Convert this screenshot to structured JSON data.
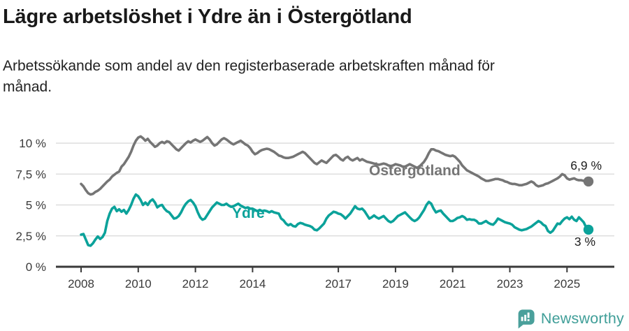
{
  "title": "Lägre arbetslöshet i Ydre än i Östergötland",
  "subtitle": "Arbetssökande som andel av den registerbaserade arbetskraften månad för månad.",
  "subtitle_lines": [
    "Arbetssökande som andel av den registerbaserade arbetskraften månad för",
    "månad."
  ],
  "colors": {
    "ostergotland_line": "#757575",
    "ydre_line": "#0ba29a",
    "grid": "#d8d8d8",
    "axis": "#3a3a3a",
    "text": "#191919",
    "brand_teal": "#3f9e98"
  },
  "footer": {
    "brand": "Newsworthy",
    "logo_icon": "speech-bubble-bar-chart-icon"
  },
  "chart_data": {
    "type": "line",
    "title": "Lägre arbetslöshet i Ydre än i Östergötland",
    "subtitle": "Arbetssökande som andel av den registerbaserade arbetskraften månad för månad.",
    "x_unit": "month",
    "x_start": "2008-01",
    "x_end": "2025-10",
    "ylim": [
      0,
      11.2
    ],
    "grid": true,
    "legend": "inline-labels",
    "y_ticks": [
      "0 %",
      "2,5 %",
      "5 %",
      "7,5 %",
      "10 %"
    ],
    "y_tick_values": [
      0,
      2.5,
      5,
      7.5,
      10
    ],
    "x_ticks": [
      "2008",
      "2010",
      "2012",
      "2014",
      "2017",
      "2019",
      "2021",
      "2023",
      "2025"
    ],
    "series": [
      {
        "name": "Östergötland",
        "color": "#757575",
        "end_label": "6,9 %",
        "end_value": 6.9,
        "values": [
          6.7,
          6.5,
          6.2,
          5.95,
          5.85,
          5.9,
          6.05,
          6.15,
          6.3,
          6.5,
          6.7,
          6.9,
          7.05,
          7.3,
          7.45,
          7.6,
          7.7,
          8.1,
          8.3,
          8.6,
          8.9,
          9.3,
          9.8,
          10.2,
          10.45,
          10.55,
          10.4,
          10.2,
          10.35,
          10.1,
          9.9,
          9.7,
          9.8,
          10.0,
          10.1,
          10.0,
          10.15,
          10.1,
          9.9,
          9.7,
          9.5,
          9.4,
          9.6,
          9.8,
          10.0,
          10.15,
          10.05,
          10.2,
          10.3,
          10.2,
          10.1,
          10.2,
          10.35,
          10.5,
          10.3,
          10.0,
          9.8,
          9.9,
          10.1,
          10.3,
          10.4,
          10.3,
          10.15,
          10.0,
          9.9,
          10.0,
          10.1,
          10.2,
          10.05,
          9.9,
          9.8,
          9.6,
          9.3,
          9.1,
          9.2,
          9.35,
          9.45,
          9.5,
          9.55,
          9.5,
          9.4,
          9.3,
          9.15,
          9.0,
          8.95,
          8.85,
          8.8,
          8.8,
          8.85,
          8.9,
          9.0,
          9.1,
          9.2,
          9.3,
          9.2,
          9.0,
          8.8,
          8.6,
          8.4,
          8.3,
          8.45,
          8.6,
          8.5,
          8.4,
          8.6,
          8.8,
          9.0,
          9.05,
          8.9,
          8.7,
          8.6,
          8.8,
          8.9,
          8.7,
          8.6,
          8.7,
          8.8,
          8.6,
          8.7,
          8.6,
          8.5,
          8.45,
          8.4,
          8.35,
          8.3,
          8.25,
          8.3,
          8.35,
          8.3,
          8.2,
          8.15,
          8.2,
          8.3,
          8.25,
          8.2,
          8.1,
          8.1,
          8.2,
          8.3,
          8.2,
          8.1,
          8.0,
          8.1,
          8.3,
          8.5,
          8.8,
          9.2,
          9.5,
          9.5,
          9.4,
          9.35,
          9.25,
          9.15,
          9.05,
          9.0,
          8.95,
          9.0,
          8.9,
          8.7,
          8.5,
          8.2,
          8.0,
          7.8,
          7.7,
          7.6,
          7.5,
          7.4,
          7.3,
          7.15,
          7.05,
          6.95,
          6.95,
          7.0,
          7.05,
          7.1,
          7.1,
          7.05,
          7.0,
          6.9,
          6.85,
          6.75,
          6.7,
          6.7,
          6.65,
          6.6,
          6.6,
          6.65,
          6.7,
          6.8,
          6.9,
          6.8,
          6.6,
          6.5,
          6.55,
          6.6,
          6.7,
          6.75,
          6.85,
          6.95,
          7.05,
          7.15,
          7.3,
          7.5,
          7.4,
          7.15,
          7.05,
          7.1,
          7.15,
          7.05,
          7.0,
          7.0,
          6.95,
          6.95,
          6.9
        ]
      },
      {
        "name": "Ydre",
        "color": "#0ba29a",
        "end_label": "3 %",
        "end_value": 3.0,
        "values": [
          2.6,
          2.65,
          2.2,
          1.75,
          1.7,
          1.9,
          2.2,
          2.45,
          2.25,
          2.4,
          2.75,
          3.7,
          4.3,
          4.7,
          4.85,
          4.5,
          4.65,
          4.45,
          4.6,
          4.3,
          4.6,
          5.0,
          5.5,
          5.85,
          5.7,
          5.4,
          5.0,
          5.2,
          5.0,
          5.3,
          5.45,
          5.2,
          4.8,
          4.95,
          5.0,
          4.7,
          4.5,
          4.4,
          4.15,
          3.9,
          3.95,
          4.1,
          4.4,
          4.8,
          5.1,
          5.3,
          5.4,
          5.2,
          4.9,
          4.4,
          4.0,
          3.8,
          3.9,
          4.2,
          4.5,
          4.8,
          5.0,
          5.2,
          5.1,
          5.0,
          5.0,
          5.1,
          4.95,
          4.85,
          4.9,
          5.0,
          5.1,
          4.95,
          4.85,
          4.75,
          4.8,
          4.7,
          4.7,
          4.6,
          4.5,
          4.6,
          4.5,
          4.55,
          4.5,
          4.4,
          4.5,
          4.4,
          4.35,
          4.3,
          3.9,
          3.75,
          3.5,
          3.35,
          3.45,
          3.3,
          3.25,
          3.45,
          3.55,
          3.5,
          3.4,
          3.35,
          3.3,
          3.2,
          3.0,
          2.95,
          3.1,
          3.3,
          3.5,
          3.9,
          4.15,
          4.3,
          4.45,
          4.4,
          4.3,
          4.25,
          4.1,
          3.9,
          4.1,
          4.3,
          4.6,
          4.9,
          4.7,
          4.65,
          4.7,
          4.5,
          4.2,
          3.9,
          4.0,
          4.15,
          4.0,
          3.9,
          4.0,
          4.1,
          3.9,
          3.7,
          3.6,
          3.7,
          3.9,
          4.1,
          4.2,
          4.3,
          4.4,
          4.2,
          4.0,
          3.8,
          3.7,
          3.8,
          4.0,
          4.3,
          4.6,
          5.0,
          5.25,
          5.1,
          4.7,
          4.4,
          4.5,
          4.55,
          4.3,
          4.1,
          3.9,
          3.7,
          3.7,
          3.8,
          3.95,
          4.0,
          4.1,
          4.0,
          3.8,
          3.85,
          3.8,
          3.8,
          3.7,
          3.5,
          3.5,
          3.6,
          3.7,
          3.55,
          3.45,
          3.4,
          3.6,
          3.9,
          3.8,
          3.7,
          3.6,
          3.55,
          3.5,
          3.4,
          3.2,
          3.1,
          3.0,
          2.95,
          3.0,
          3.05,
          3.15,
          3.25,
          3.4,
          3.55,
          3.7,
          3.6,
          3.4,
          3.3,
          2.9,
          2.75,
          2.9,
          3.2,
          3.5,
          3.45,
          3.7,
          3.9,
          4.0,
          3.85,
          4.05,
          3.8,
          3.7,
          4.0,
          3.8,
          3.6,
          3.2,
          3.0
        ]
      }
    ]
  }
}
